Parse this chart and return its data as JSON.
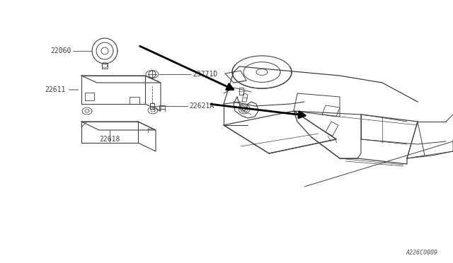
{
  "bg_color": "#ffffff",
  "line_color": "#404040",
  "arrow_color": "#000000",
  "label_color": "#404040",
  "fig_width": 6.4,
  "fig_height": 3.72,
  "dpi": 100,
  "watermark": "A226C0009"
}
